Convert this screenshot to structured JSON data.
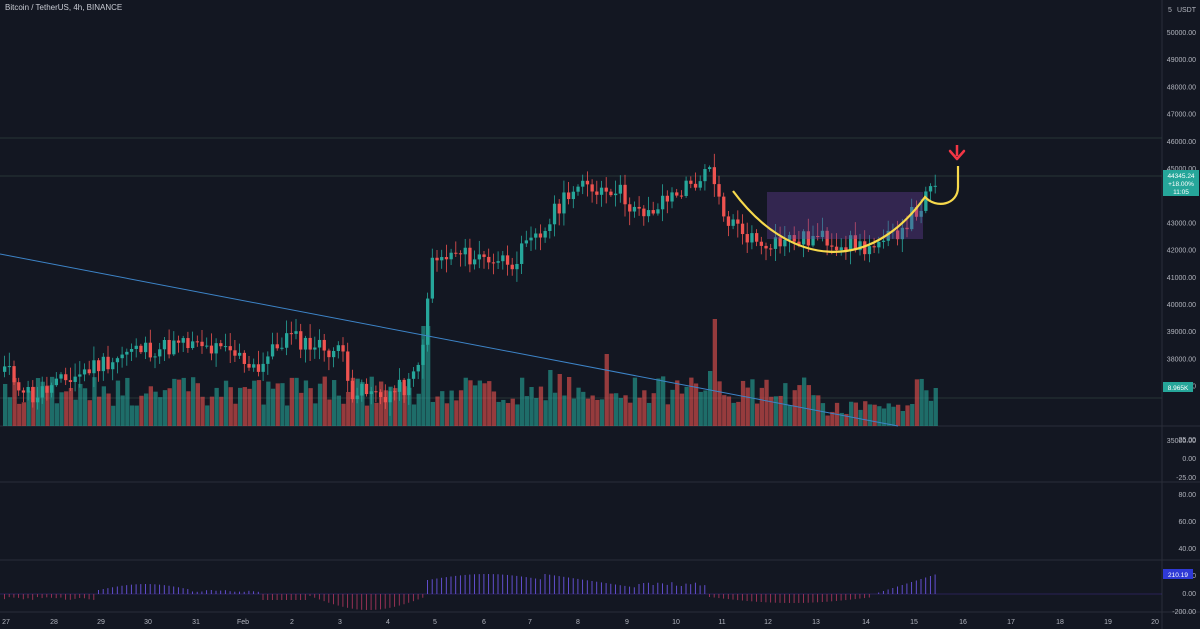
{
  "header": {
    "symbol_title": "Bitcoin / TetherUS, 4h, BINANCE"
  },
  "currency_label": "USDT",
  "theme": {
    "background": "#131722",
    "up": "#26a69a",
    "down": "#ef5350",
    "pattern": "#f7d94c",
    "trendline": "#3d84c8",
    "arrow": "#f23645",
    "cup_fill": "#6a3f9a",
    "histogram": "#5b3bbd"
  },
  "chart_data": [
    {
      "type": "candlestick",
      "interval": "4h",
      "price_axis_ticks": [
        "50000.00",
        "49000.00",
        "48000.00",
        "47000.00",
        "46000.00",
        "45000.00",
        "43000.00",
        "42000.00",
        "41000.00",
        "40000.00",
        "39000.00",
        "38000.00",
        "37000.00",
        "35000.00"
      ],
      "time_axis_ticks": [
        "27",
        "28",
        "29",
        "30",
        "31",
        "Feb",
        "2",
        "3",
        "4",
        "5",
        "6",
        "7",
        "8",
        "9",
        "10",
        "11",
        "12",
        "13",
        "14",
        "15",
        "16",
        "17",
        "18",
        "19",
        "20"
      ],
      "price_range": [
        34500,
        51000
      ],
      "last_price_label": "44345.24",
      "last_change_label": "+18.00%",
      "countdown_label": "11:05",
      "volume_label": "8.965K",
      "scale_top_partial": "5",
      "overlays": [
        "descending trendline",
        "cup pattern (yellow curve)",
        "consolidation box",
        "projected breakout",
        "down arrow"
      ],
      "sample_candles_ohlc": [
        [
          36950,
          37400,
          35800,
          36300
        ],
        [
          36300,
          37200,
          36000,
          36900
        ],
        [
          36900,
          38100,
          36700,
          37700
        ],
        [
          37700,
          38300,
          37400,
          37900
        ],
        [
          37900,
          38300,
          37500,
          37700
        ],
        [
          37700,
          38800,
          37500,
          38400
        ],
        [
          38400,
          38500,
          37600,
          37800
        ],
        [
          37800,
          38300,
          36800,
          37100
        ],
        [
          37100,
          38600,
          36900,
          38200
        ],
        [
          38200,
          39300,
          37900,
          38700
        ],
        [
          38700,
          38800,
          37700,
          38300
        ],
        [
          38300,
          38600,
          37100,
          37400
        ],
        [
          37400,
          37500,
          36500,
          36800
        ],
        [
          36800,
          37600,
          36400,
          37200
        ],
        [
          37200,
          40500,
          37000,
          40200
        ],
        [
          40200,
          42100,
          40000,
          41700
        ],
        [
          41700,
          41900,
          41100,
          41700
        ],
        [
          41700,
          42100,
          41400,
          41500
        ],
        [
          41500,
          43500,
          41300,
          43000
        ],
        [
          43000,
          44600,
          42700,
          44300
        ],
        [
          44300,
          45500,
          43400,
          43800
        ],
        [
          43800,
          44500,
          42800,
          43400
        ],
        [
          43400,
          44900,
          43000,
          44300
        ],
        [
          44300,
          45200,
          43900,
          44900
        ],
        [
          44900,
          45900,
          43100,
          43600
        ],
        [
          43600,
          43700,
          42300,
          42500
        ],
        [
          42500,
          42800,
          41700,
          42200
        ],
        [
          42200,
          43100,
          41600,
          42200
        ],
        [
          42200,
          42900,
          41900,
          42500
        ],
        [
          42500,
          43800,
          42000,
          43600
        ],
        [
          43600,
          44400,
          43400,
          44345
        ]
      ]
    },
    {
      "type": "line",
      "y_axis_ticks": [
        "25.00",
        "0.00",
        "-25.00"
      ]
    },
    {
      "type": "line",
      "y_axis_ticks": [
        "80.00",
        "60.00",
        "40.00",
        "20.00"
      ]
    },
    {
      "type": "bar",
      "y_axis_ticks": [
        "0.00",
        "-200.00"
      ],
      "last_value_label": "210.19"
    }
  ]
}
